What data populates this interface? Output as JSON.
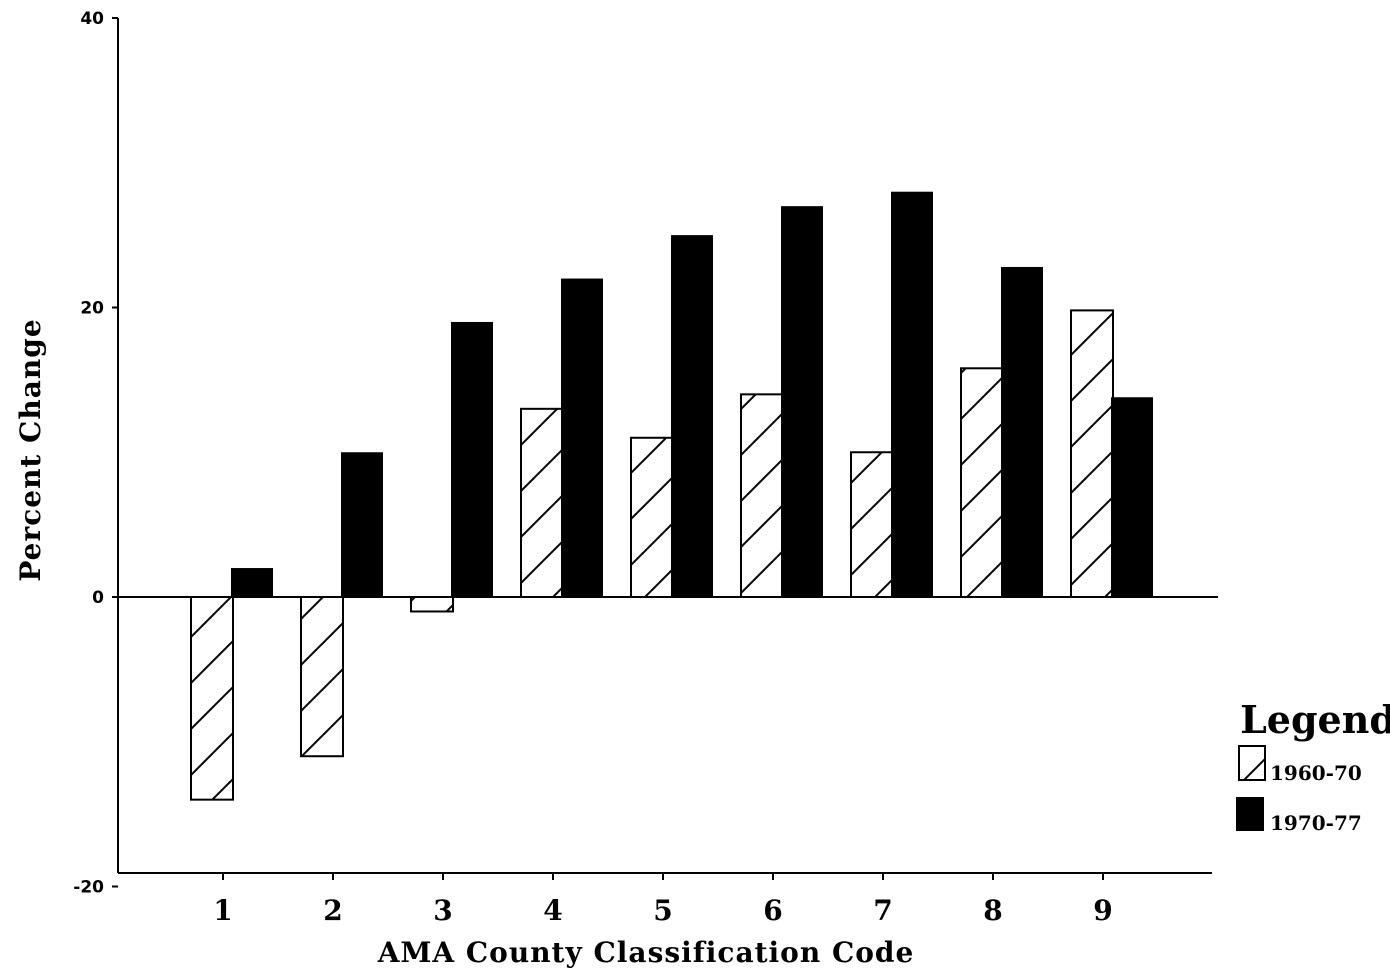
{
  "chart_data": {
    "type": "bar",
    "title": "",
    "xlabel": "AMA County Classification Code",
    "ylabel": "Percent Change",
    "categories": [
      "1",
      "2",
      "3",
      "4",
      "5",
      "6",
      "7",
      "8",
      "9"
    ],
    "series": [
      {
        "name": "1960-70",
        "values": [
          -14,
          -11,
          -1,
          13,
          11,
          14,
          10,
          15.8,
          19.8
        ],
        "pattern": "hatched"
      },
      {
        "name": "1970-77",
        "values": [
          2,
          10,
          19,
          22,
          25,
          27,
          28,
          22.8,
          13.8
        ],
        "pattern": "solid"
      }
    ],
    "ylim": [
      -20,
      40
    ],
    "yticks": [
      "-20",
      "0",
      "20",
      "40"
    ],
    "grid": false,
    "legend": {
      "title": "Legend",
      "position": "right",
      "items": [
        "1960-70",
        "1970-77"
      ]
    },
    "colors": {
      "bar_fill": "#000000",
      "hatch_bg": "#ffffff"
    }
  }
}
